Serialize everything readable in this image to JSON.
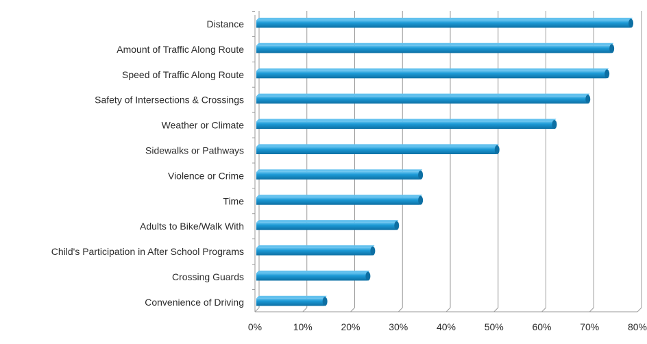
{
  "chart_data": {
    "type": "bar",
    "orientation": "horizontal",
    "categories": [
      "Distance",
      "Amount of Traffic Along Route",
      "Speed of Traffic Along Route",
      "Safety of Intersections & Crossings",
      "Weather or Climate",
      "Sidewalks or Pathways",
      "Violence or Crime",
      "Time",
      "Adults to Bike/Walk With",
      "Child's Participation in After School Programs",
      "Crossing Guards",
      "Convenience of Driving"
    ],
    "values": [
      78.5,
      74.5,
      73.5,
      69.5,
      62.5,
      50.5,
      34.5,
      34.5,
      29.5,
      24.5,
      23.5,
      14.5
    ],
    "value_unit": "percent",
    "xlim": [
      0,
      80
    ],
    "x_ticks": [
      "0%",
      "10%",
      "20%",
      "30%",
      "40%",
      "50%",
      "60%",
      "70%",
      "80%"
    ],
    "title": "",
    "xlabel": "",
    "ylabel": "",
    "grid": true,
    "legend": "none",
    "colors": {
      "bar": "#1c9ad6",
      "bar_light": "#63c1ee",
      "bar_dark": "#0d6fa3",
      "grid": "#9a9a9a"
    }
  }
}
